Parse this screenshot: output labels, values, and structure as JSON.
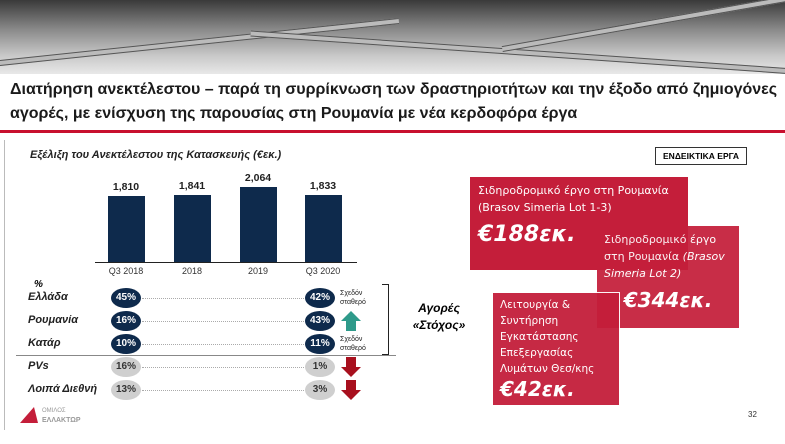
{
  "header": {
    "title": "Διατήρηση ανεκτέλεστου – παρά τη συρρίκνωση των δραστηριοτήτων και την έξοδο από ζημιογόνες αγορές, με ενίσχυση της παρουσίας στη Ρουμανία με νέα κερδοφόρα έργα"
  },
  "chart_data": {
    "type": "bar",
    "title": "Εξέλιξη του Ανεκτέλεστου της Κατασκευής (€εκ.)",
    "categories": [
      "Q3 2018",
      "2018",
      "2019",
      "Q3 2020"
    ],
    "values": [
      1810,
      1841,
      2064,
      1833
    ],
    "value_labels": [
      "1,810",
      "1,841",
      "2,064",
      "1,833"
    ],
    "ylim": [
      0,
      2200
    ],
    "bar_color": "#0e2a4c"
  },
  "mix": {
    "unit_label": "%",
    "rows": [
      {
        "label": "Ελλάδα",
        "from": "45%",
        "to": "42%",
        "note": "Σχεδόν σταθερό",
        "trend": "flat",
        "group": "target"
      },
      {
        "label": "Ρουμανία",
        "from": "16%",
        "to": "43%",
        "note": "",
        "trend": "up",
        "group": "target"
      },
      {
        "label": "Κατάρ",
        "from": "10%",
        "to": "11%",
        "note": "Σχεδόν σταθερό",
        "trend": "flat",
        "group": "target"
      },
      {
        "label": "PVs",
        "from": "16%",
        "to": "1%",
        "note": "",
        "trend": "down",
        "group": "other"
      },
      {
        "label": "Λοιπά Διεθνή",
        "from": "13%",
        "to": "3%",
        "note": "",
        "trend": "down",
        "group": "other"
      }
    ],
    "target_label_1": "Αγορές",
    "target_label_2": "«Στόχος»",
    "colors": {
      "up": "#2e9a8a",
      "down": "#a8101e"
    }
  },
  "projects": {
    "badge": "ΕΝΔΕΙΚΤΙΚΑ ΕΡΓΑ",
    "items": [
      {
        "text": "Σιδηροδρομικό έργο στη Ρουμανία (Brasov Simeria Lot 1-3)",
        "value": "€188εκ."
      },
      {
        "text": "Σιδηροδρομικό έργο στη Ρουμανία",
        "text_italic": "(Brasov Simeria Lot 2)",
        "value": "€344εκ."
      },
      {
        "text": "Λειτουργία & Συντήρηση Εγκατάστασης Επεξεργασίας Λυμάτων Θεσ/κης",
        "value": "€42εκ."
      }
    ],
    "color": "#c41e3a"
  },
  "footer": {
    "logo_text_1": "ΟΜΙΛΟΣ",
    "logo_text_2": "ΕΛΛΑΚΤΩΡ",
    "page": "32"
  }
}
